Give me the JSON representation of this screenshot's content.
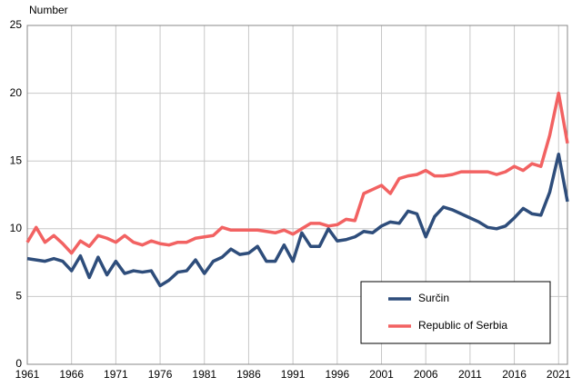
{
  "chart_data": {
    "type": "line",
    "y_label": "Number",
    "x": [
      1961,
      1962,
      1963,
      1964,
      1965,
      1966,
      1967,
      1968,
      1969,
      1970,
      1971,
      1972,
      1973,
      1974,
      1975,
      1976,
      1977,
      1978,
      1979,
      1980,
      1981,
      1982,
      1983,
      1984,
      1985,
      1986,
      1987,
      1988,
      1989,
      1990,
      1991,
      1992,
      1993,
      1994,
      1995,
      1996,
      1997,
      1998,
      1999,
      2000,
      2001,
      2002,
      2003,
      2004,
      2005,
      2006,
      2007,
      2008,
      2009,
      2010,
      2011,
      2012,
      2013,
      2014,
      2015,
      2016,
      2017,
      2018,
      2019,
      2020,
      2021,
      2022
    ],
    "series": [
      {
        "name": "Surčin",
        "color": "#2e4d7b",
        "values": [
          7.8,
          7.7,
          7.6,
          7.8,
          7.6,
          6.9,
          8.0,
          6.4,
          7.9,
          6.6,
          7.6,
          6.7,
          6.9,
          6.8,
          6.9,
          5.8,
          6.2,
          6.8,
          6.9,
          7.7,
          6.7,
          7.6,
          7.9,
          8.5,
          8.1,
          8.2,
          8.7,
          7.6,
          7.6,
          8.8,
          7.6,
          9.7,
          8.7,
          8.7,
          10.0,
          9.1,
          9.2,
          9.4,
          9.8,
          9.7,
          10.2,
          10.5,
          10.4,
          11.3,
          11.1,
          9.4,
          10.9,
          11.6,
          11.4,
          11.1,
          10.8,
          10.5,
          10.1,
          10.0,
          10.2,
          10.8,
          11.5,
          11.1,
          11.0,
          12.7,
          15.5,
          12.0
        ]
      },
      {
        "name": "Republic of Serbia",
        "color": "#f26262",
        "values": [
          9.0,
          10.1,
          9.0,
          9.5,
          8.9,
          8.2,
          9.1,
          8.7,
          9.5,
          9.3,
          9.0,
          9.5,
          9.0,
          8.8,
          9.1,
          8.9,
          8.8,
          9.0,
          9.0,
          9.3,
          9.4,
          9.5,
          10.1,
          9.9,
          9.9,
          9.9,
          9.9,
          9.8,
          9.7,
          9.9,
          9.6,
          10.0,
          10.4,
          10.4,
          10.2,
          10.3,
          10.7,
          10.6,
          12.6,
          12.9,
          13.2,
          12.6,
          13.7,
          13.9,
          14.0,
          14.3,
          13.9,
          13.9,
          14.0,
          14.2,
          14.2,
          14.2,
          14.2,
          14.0,
          14.2,
          14.6,
          14.3,
          14.8,
          14.6,
          16.9,
          20.0,
          16.3
        ]
      }
    ],
    "xlim": [
      1961,
      2022
    ],
    "xticks": [
      1961,
      1966,
      1971,
      1976,
      1981,
      1986,
      1991,
      1996,
      2001,
      2006,
      2011,
      2016,
      2021
    ],
    "ylim": [
      0,
      25
    ],
    "yticks": [
      0,
      5,
      10,
      15,
      20,
      25
    ],
    "grid": true,
    "legend": "lower right"
  }
}
